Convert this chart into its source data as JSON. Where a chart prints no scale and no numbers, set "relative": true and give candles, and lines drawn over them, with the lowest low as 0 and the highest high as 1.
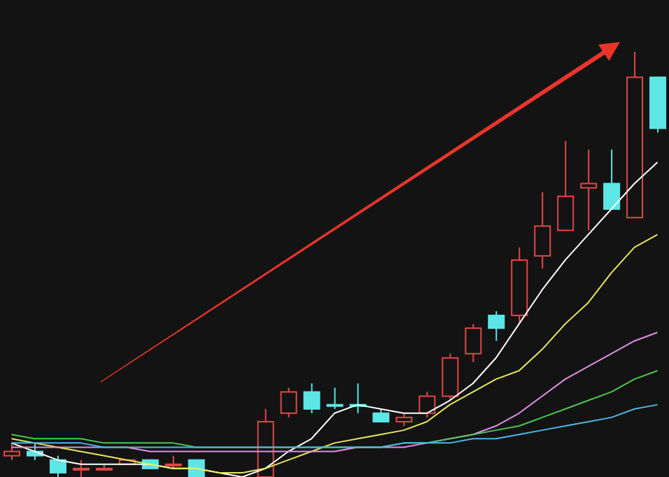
{
  "chart_data": {
    "type": "candlestick",
    "relative": true,
    "categories": [
      null,
      null,
      null,
      null,
      null,
      null,
      null,
      null,
      null,
      null,
      null,
      null,
      null,
      null,
      null,
      null,
      null,
      null,
      null,
      null,
      null,
      null,
      null,
      null,
      null,
      null,
      null,
      null,
      null
    ],
    "ohlc": [
      [
        0.05,
        0.08,
        0.04,
        0.06
      ],
      [
        0.06,
        0.08,
        0.04,
        0.05
      ],
      [
        0.04,
        0.05,
        0,
        0.01
      ],
      [
        0.02,
        0.04,
        0,
        0.02
      ],
      [
        0.02,
        0.03,
        0.02,
        0.02
      ],
      [
        0.03,
        0.04,
        0.03,
        0.04
      ],
      [
        0.04,
        0.04,
        0.02,
        0.02
      ],
      [
        0.03,
        0.05,
        0.02,
        0.03
      ],
      [
        0.04,
        0.04,
        0,
        0
      ],
      null,
      null,
      [
        0,
        0.16,
        0,
        0.13
      ],
      [
        0.15,
        0.21,
        0.14,
        0.2
      ],
      [
        0.2,
        0.22,
        0.15,
        0.16
      ],
      [
        0.17,
        0.21,
        0.16,
        0.17
      ],
      [
        0.17,
        0.22,
        0.15,
        0.17
      ],
      [
        0.15,
        0.16,
        0.13,
        0.13
      ],
      [
        0.13,
        0.15,
        0.12,
        0.14
      ],
      [
        0.15,
        0.2,
        0.14,
        0.19
      ],
      [
        0.19,
        0.29,
        0.18,
        0.28
      ],
      [
        0.29,
        0.36,
        0.27,
        0.35
      ],
      [
        0.38,
        0.39,
        0.32,
        0.35
      ],
      [
        0.38,
        0.54,
        0.36,
        0.51
      ],
      [
        0.52,
        0.67,
        0.49,
        0.59
      ],
      [
        0.58,
        0.79,
        0.58,
        0.66
      ],
      [
        0.68,
        0.77,
        0.58,
        0.69
      ],
      [
        0.69,
        0.77,
        0.63,
        0.63
      ],
      [
        0.61,
        1,
        0.61,
        0.94
      ],
      [
        0.94,
        0.94,
        0.81,
        0.82
      ]
    ],
    "colors": [
      "#e04848",
      "#5ce6e6",
      "#5ce6e6",
      "#e04848",
      "#e04848",
      "#e04848",
      "#5ce6e6",
      "#e04848",
      "#5ce6e6",
      null,
      null,
      "#e04848",
      "#e04848",
      "#5ce6e6",
      "#5ce6e6",
      "#5ce6e6",
      "#5ce6e6",
      "#e04848",
      "#e04848",
      "#e04848",
      "#e04848",
      "#5ce6e6",
      "#e04848",
      "#e04848",
      "#e04848",
      "#e04848",
      "#5ce6e6",
      "#e04848",
      "#5ce6e6"
    ],
    "series": [
      {
        "type": "line",
        "color": "#ffffff",
        "values": [
          0.08,
          0.06,
          0.04,
          0.03,
          0.03,
          0.03,
          0.03,
          0.02,
          0.02,
          0.01,
          0,
          0.02,
          0.06,
          0.09,
          0.15,
          0.17,
          0.16,
          0.15,
          0.15,
          0.18,
          0.22,
          0.28,
          0.36,
          0.44,
          0.51,
          0.57,
          0.63,
          0.69,
          0.74
        ]
      },
      {
        "type": "line",
        "color": "#e8e85a",
        "values": [
          0.09,
          0.08,
          0.07,
          0.06,
          0.05,
          0.04,
          0.03,
          0.02,
          0.02,
          0.01,
          0.01,
          0.02,
          0.04,
          0.06,
          0.08,
          0.09,
          0.1,
          0.11,
          0.13,
          0.17,
          0.2,
          0.23,
          0.25,
          0.3,
          0.36,
          0.41,
          0.48,
          0.54,
          0.57
        ]
      },
      {
        "type": "line",
        "color": "#e08ee8",
        "values": [
          0.07,
          0.07,
          0.07,
          0.07,
          0.07,
          0.07,
          0.06,
          0.06,
          0.06,
          0.06,
          0.06,
          0.06,
          0.06,
          0.06,
          0.06,
          0.07,
          0.07,
          0.07,
          0.08,
          0.09,
          0.1,
          0.12,
          0.15,
          0.19,
          0.23,
          0.26,
          0.29,
          0.32,
          0.34
        ]
      },
      {
        "type": "line",
        "color": "#4cc84c",
        "values": [
          0.1,
          0.09,
          0.09,
          0.09,
          0.08,
          0.08,
          0.08,
          0.08,
          0.07,
          0.07,
          0.07,
          0.07,
          0.07,
          0.07,
          0.07,
          0.07,
          0.07,
          0.08,
          0.08,
          0.09,
          0.1,
          0.11,
          0.12,
          0.14,
          0.16,
          0.18,
          0.2,
          0.23,
          0.25
        ]
      },
      {
        "type": "line",
        "color": "#4ab8e8",
        "values": [
          0.08,
          0.08,
          0.08,
          0.08,
          0.07,
          0.07,
          0.07,
          0.07,
          0.07,
          0.07,
          0.07,
          0.07,
          0.07,
          0.07,
          0.07,
          0.07,
          0.07,
          0.08,
          0.08,
          0.08,
          0.09,
          0.09,
          0.1,
          0.11,
          0.12,
          0.13,
          0.14,
          0.16,
          0.17
        ]
      }
    ]
  }
}
